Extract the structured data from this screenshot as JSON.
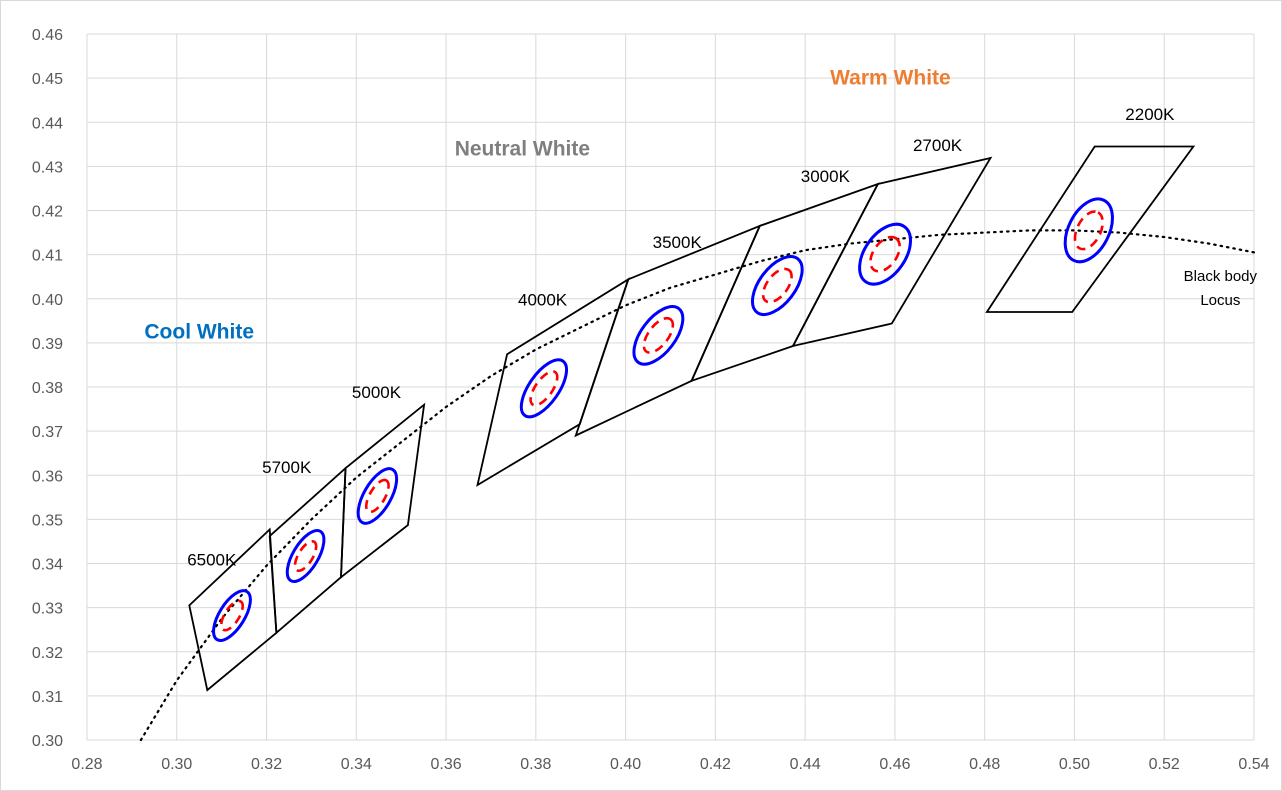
{
  "chart_data": {
    "type": "scatter",
    "title": "",
    "xlabel": "",
    "ylabel": "",
    "xlim": [
      0.28,
      0.54
    ],
    "ylim": [
      0.3,
      0.46
    ],
    "x_ticks": [
      "0.28",
      "0.30",
      "0.32",
      "0.34",
      "0.36",
      "0.38",
      "0.40",
      "0.42",
      "0.44",
      "0.46",
      "0.48",
      "0.50",
      "0.52",
      "0.54"
    ],
    "y_ticks": [
      "0.30",
      "0.31",
      "0.32",
      "0.33",
      "0.34",
      "0.35",
      "0.36",
      "0.37",
      "0.38",
      "0.39",
      "0.40",
      "0.41",
      "0.42",
      "0.43",
      "0.44",
      "0.45",
      "0.46"
    ],
    "grid": true,
    "colors": {
      "gridline": "#d9d9d9",
      "quadrangle": "#000000",
      "outer_ellipse": "#0000ff",
      "inner_ellipse": "#ff0000",
      "locus": "#000000",
      "cool_white": "#0070c0",
      "neutral_white": "#7f7f7f",
      "warm_white": "#ed7d31"
    },
    "regions": [
      {
        "label": "Cool White",
        "x": 0.305,
        "y": 0.391,
        "color": "#0070c0"
      },
      {
        "label": "Neutral White",
        "x": 0.377,
        "y": 0.4325,
        "color": "#7f7f7f"
      },
      {
        "label": "Warm White",
        "x": 0.459,
        "y": 0.4485,
        "color": "#ed7d31"
      }
    ],
    "locus_label": {
      "lines": [
        "Black body",
        "Locus"
      ],
      "x": 0.5325,
      "y": 0.404
    },
    "locus": [
      [
        0.292,
        0.3
      ],
      [
        0.3,
        0.3135
      ],
      [
        0.31,
        0.3275
      ],
      [
        0.32,
        0.3395
      ],
      [
        0.33,
        0.35
      ],
      [
        0.34,
        0.3595
      ],
      [
        0.35,
        0.3675
      ],
      [
        0.36,
        0.3755
      ],
      [
        0.37,
        0.3825
      ],
      [
        0.38,
        0.3885
      ],
      [
        0.39,
        0.3935
      ],
      [
        0.4,
        0.3985
      ],
      [
        0.41,
        0.4025
      ],
      [
        0.42,
        0.4055
      ],
      [
        0.43,
        0.4085
      ],
      [
        0.44,
        0.411
      ],
      [
        0.45,
        0.4125
      ],
      [
        0.46,
        0.4135
      ],
      [
        0.47,
        0.4145
      ],
      [
        0.48,
        0.415
      ],
      [
        0.49,
        0.4155
      ],
      [
        0.5,
        0.4155
      ],
      [
        0.51,
        0.415
      ],
      [
        0.52,
        0.414
      ],
      [
        0.53,
        0.4125
      ],
      [
        0.54,
        0.4105
      ]
    ],
    "bins": [
      {
        "label": "6500K",
        "label_at": [
          0.3078,
          0.3395
        ],
        "quad": [
          [
            0.3028,
            0.3305
          ],
          [
            0.3207,
            0.3477
          ],
          [
            0.3222,
            0.3243
          ],
          [
            0.3068,
            0.3113
          ]
        ],
        "center": [
          0.3123,
          0.3282
        ],
        "outer": {
          "a": 0.0063,
          "b": 0.0028,
          "angle": 58
        },
        "inner": {
          "a": 0.0037,
          "b": 0.0016,
          "angle": 58
        }
      },
      {
        "label": "5700K",
        "label_at": [
          0.3245,
          0.3605
        ],
        "quad": [
          [
            0.3207,
            0.3462
          ],
          [
            0.3376,
            0.3616
          ],
          [
            0.3366,
            0.3369
          ],
          [
            0.3222,
            0.3243
          ]
        ],
        "center": [
          0.3287,
          0.3417
        ],
        "outer": {
          "a": 0.0064,
          "b": 0.0028,
          "angle": 59
        },
        "inner": {
          "a": 0.0037,
          "b": 0.0016,
          "angle": 59
        }
      },
      {
        "label": "5000K",
        "label_at": [
          0.3445,
          0.3775
        ],
        "quad": [
          [
            0.3376,
            0.3616
          ],
          [
            0.3551,
            0.376
          ],
          [
            0.3515,
            0.3487
          ],
          [
            0.3366,
            0.3369
          ]
        ],
        "center": [
          0.3447,
          0.3553
        ],
        "outer": {
          "a": 0.0068,
          "b": 0.003,
          "angle": 60
        },
        "inner": {
          "a": 0.004,
          "b": 0.0017,
          "angle": 60
        }
      },
      {
        "label": "4000K",
        "label_at": [
          0.3815,
          0.3985
        ],
        "quad": [
          [
            0.3736,
            0.3874
          ],
          [
            0.4006,
            0.4044
          ],
          [
            0.3898,
            0.3716
          ],
          [
            0.367,
            0.3578
          ]
        ],
        "center": [
          0.3818,
          0.3797
        ],
        "outer": {
          "a": 0.0074,
          "b": 0.0033,
          "angle": 55
        },
        "inner": {
          "a": 0.0044,
          "b": 0.0019,
          "angle": 55
        }
      },
      {
        "label": "3500K",
        "label_at": [
          0.4115,
          0.4115
        ],
        "quad": [
          [
            0.4006,
            0.4044
          ],
          [
            0.4299,
            0.4165
          ],
          [
            0.4147,
            0.3814
          ],
          [
            0.3889,
            0.369
          ]
        ],
        "center": [
          0.4073,
          0.3917
        ],
        "outer": {
          "a": 0.0075,
          "b": 0.0038,
          "angle": 53
        },
        "inner": {
          "a": 0.0045,
          "b": 0.0022,
          "angle": 53
        }
      },
      {
        "label": "3000K",
        "label_at": [
          0.4445,
          0.4265
        ],
        "quad": [
          [
            0.4299,
            0.4165
          ],
          [
            0.4562,
            0.426
          ],
          [
            0.4373,
            0.3893
          ],
          [
            0.4147,
            0.3814
          ]
        ],
        "center": [
          0.4338,
          0.403
        ],
        "outer": {
          "a": 0.0075,
          "b": 0.004,
          "angle": 53
        },
        "inner": {
          "a": 0.0043,
          "b": 0.0023,
          "angle": 53
        }
      },
      {
        "label": "2700K",
        "label_at": [
          0.4695,
          0.4335
        ],
        "quad": [
          [
            0.4562,
            0.426
          ],
          [
            0.4813,
            0.4319
          ],
          [
            0.4593,
            0.3944
          ],
          [
            0.4373,
            0.3893
          ]
        ],
        "center": [
          0.4578,
          0.4101
        ],
        "outer": {
          "a": 0.0075,
          "b": 0.0045,
          "angle": 55
        },
        "inner": {
          "a": 0.0043,
          "b": 0.0026,
          "angle": 55
        }
      },
      {
        "label": "2200K",
        "label_at": [
          0.5168,
          0.4405
        ],
        "quad": [
          [
            0.5045,
            0.4345
          ],
          [
            0.5265,
            0.4345
          ],
          [
            0.4995,
            0.397
          ],
          [
            0.4805,
            0.397
          ]
        ],
        "center": [
          0.5032,
          0.4155
        ],
        "outer": {
          "a": 0.0075,
          "b": 0.0045,
          "angle": 63
        },
        "inner": {
          "a": 0.0045,
          "b": 0.0026,
          "angle": 63
        }
      }
    ]
  }
}
